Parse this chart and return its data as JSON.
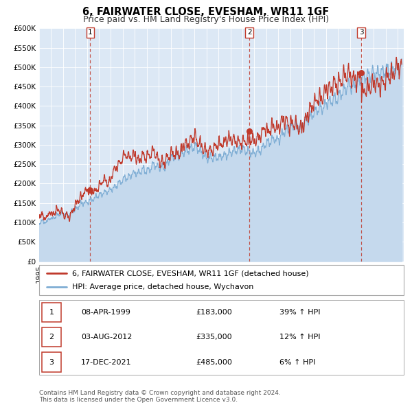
{
  "title": "6, FAIRWATER CLOSE, EVESHAM, WR11 1GF",
  "subtitle": "Price paid vs. HM Land Registry's House Price Index (HPI)",
  "ylim": [
    0,
    600000
  ],
  "yticks": [
    0,
    50000,
    100000,
    150000,
    200000,
    250000,
    300000,
    350000,
    400000,
    450000,
    500000,
    550000,
    600000
  ],
  "ytick_labels": [
    "£0",
    "£50K",
    "£100K",
    "£150K",
    "£200K",
    "£250K",
    "£300K",
    "£350K",
    "£400K",
    "£450K",
    "£500K",
    "£550K",
    "£600K"
  ],
  "xlim_start": 1995.0,
  "xlim_end": 2025.5,
  "hpi_color": "#7eadd4",
  "hpi_fill_color": "#c5d9ed",
  "price_color": "#c0392b",
  "vline_color": "#c0392b",
  "bg_color": "#dce8f5",
  "grid_color": "#ffffff",
  "sale_dates": [
    1999.275,
    2012.59,
    2021.96
  ],
  "sale_prices": [
    183000,
    335000,
    485000
  ],
  "sale_labels": [
    "1",
    "2",
    "3"
  ],
  "legend_price_label": "6, FAIRWATER CLOSE, EVESHAM, WR11 1GF (detached house)",
  "legend_hpi_label": "HPI: Average price, detached house, Wychavon",
  "table_rows": [
    [
      "1",
      "08-APR-1999",
      "£183,000",
      "39% ↑ HPI"
    ],
    [
      "2",
      "03-AUG-2012",
      "£335,000",
      "12% ↑ HPI"
    ],
    [
      "3",
      "17-DEC-2021",
      "£485,000",
      "6% ↑ HPI"
    ]
  ],
  "footnote": "Contains HM Land Registry data © Crown copyright and database right 2024.\nThis data is licensed under the Open Government Licence v3.0.",
  "title_fontsize": 10.5,
  "subtitle_fontsize": 9,
  "tick_fontsize": 7.5,
  "legend_fontsize": 8,
  "table_fontsize": 8,
  "footnote_fontsize": 6.5
}
